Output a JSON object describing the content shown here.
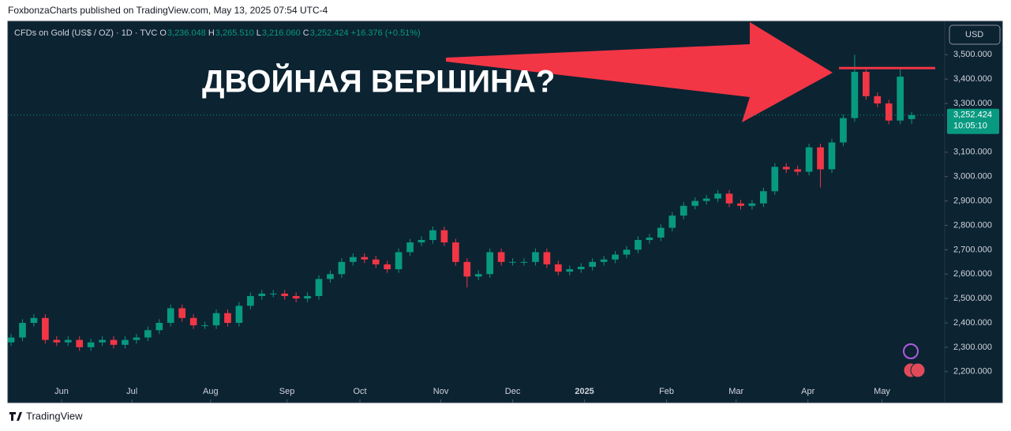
{
  "header": "FoxbonzaCharts published on TradingView.com, May 13, 2025 07:54 UTC-4",
  "footer": "TradingView",
  "currency_button": "USD",
  "chart_data": {
    "type": "candlestick",
    "symbol": "CFDs on Gold (US$ / OZ) · 1D · TVC",
    "ohlc_legend": [
      {
        "key": "O",
        "value": 3236.048,
        "label": "3,236.048"
      },
      {
        "key": "H",
        "value": 3265.51,
        "label": "3,265.510"
      },
      {
        "key": "L",
        "value": 3216.06,
        "label": "3,216.060"
      },
      {
        "key": "C",
        "value": 3252.424,
        "label": "3,252.424"
      }
    ],
    "change": {
      "value": 16.376,
      "label": "+16.376"
    },
    "change_pct": {
      "value": 0.51,
      "label": "(+0.51%)"
    },
    "annotation": "ДВОЙНАЯ ВЕРШИНА?",
    "resistance": 3445,
    "resistance_color": "#f23645",
    "last_price": {
      "value": 3252.424,
      "label": "3,252.424"
    },
    "countdown": "10:05:10",
    "up_color": "#089981",
    "down_color": "#f23645",
    "xlim": [
      -0.28,
      81.9
    ],
    "ylim": [
      2073,
      3637
    ],
    "xticks": [
      {
        "value": 4.43,
        "label": "Jun"
      },
      {
        "value": 10.6,
        "label": "Jul"
      },
      {
        "value": 17.5,
        "label": "Aug"
      },
      {
        "value": 24.2,
        "label": "Sep"
      },
      {
        "value": 30.6,
        "label": "Oct"
      },
      {
        "value": 37.7,
        "label": "Nov"
      },
      {
        "value": 44.0,
        "label": "Dec"
      },
      {
        "value": 50.3,
        "label": "2025"
      },
      {
        "value": 57.5,
        "label": "Feb"
      },
      {
        "value": 63.6,
        "label": "Mar"
      },
      {
        "value": 69.9,
        "label": "Apr"
      },
      {
        "value": 76.4,
        "label": "May"
      }
    ],
    "yticks": [
      {
        "value": 2200,
        "label": "2,200.000"
      },
      {
        "value": 2300,
        "label": "2,300.000"
      },
      {
        "value": 2400,
        "label": "2,400.000"
      },
      {
        "value": 2500,
        "label": "2,500.000"
      },
      {
        "value": 2600,
        "label": "2,600.000"
      },
      {
        "value": 2700,
        "label": "2,700.000"
      },
      {
        "value": 2800,
        "label": "2,800.000"
      },
      {
        "value": 2900,
        "label": "2,900.000"
      },
      {
        "value": 3000,
        "label": "3,000.000"
      },
      {
        "value": 3100,
        "label": "3,100.000"
      },
      {
        "value": 3300,
        "label": "3,300.000"
      },
      {
        "value": 3400,
        "label": "3,400.000"
      },
      {
        "value": 3500,
        "label": "3,500.000"
      }
    ],
    "open": [
      2320,
      2340,
      2400,
      2420,
      2330,
      2320,
      2330,
      2300,
      2320,
      2330,
      2310,
      2330,
      2340,
      2370,
      2400,
      2460,
      2420,
      2390,
      2390,
      2440,
      2400,
      2470,
      2510,
      2520,
      2520,
      2510,
      2500,
      2510,
      2580,
      2600,
      2650,
      2670,
      2660,
      2640,
      2620,
      2690,
      2730,
      2740,
      2780,
      2730,
      2650,
      2590,
      2600,
      2690,
      2650,
      2650,
      2650,
      2690,
      2640,
      2610,
      2620,
      2630,
      2650,
      2660,
      2680,
      2700,
      2740,
      2750,
      2790,
      2840,
      2880,
      2900,
      2910,
      2930,
      2890,
      2880,
      2890,
      2940,
      3040,
      3030,
      3020,
      3120,
      3030,
      3140,
      3240,
      3430,
      3330,
      3300,
      3230,
      3236.048
    ],
    "high": [
      2355,
      2415,
      2435,
      2435,
      2345,
      2345,
      2345,
      2335,
      2345,
      2345,
      2345,
      2355,
      2385,
      2415,
      2475,
      2475,
      2435,
      2405,
      2455,
      2455,
      2485,
      2525,
      2535,
      2535,
      2535,
      2525,
      2525,
      2595,
      2615,
      2665,
      2685,
      2685,
      2675,
      2655,
      2705,
      2745,
      2755,
      2795,
      2795,
      2745,
      2665,
      2615,
      2705,
      2705,
      2665,
      2665,
      2705,
      2705,
      2655,
      2635,
      2645,
      2665,
      2675,
      2695,
      2715,
      2755,
      2765,
      2805,
      2855,
      2895,
      2915,
      2925,
      2945,
      2945,
      2905,
      2905,
      2955,
      3055,
      3055,
      3045,
      3135,
      3135,
      3155,
      3255,
      3500,
      3445,
      3345,
      3315,
      3440,
      3265.51
    ],
    "low": [
      2305,
      2325,
      2385,
      2315,
      2305,
      2305,
      2285,
      2285,
      2305,
      2295,
      2295,
      2315,
      2325,
      2355,
      2385,
      2405,
      2375,
      2375,
      2375,
      2385,
      2385,
      2455,
      2495,
      2505,
      2495,
      2485,
      2485,
      2495,
      2565,
      2585,
      2635,
      2645,
      2625,
      2605,
      2605,
      2675,
      2715,
      2725,
      2715,
      2635,
      2545,
      2575,
      2585,
      2635,
      2635,
      2635,
      2635,
      2625,
      2595,
      2595,
      2605,
      2615,
      2635,
      2645,
      2665,
      2685,
      2725,
      2735,
      2775,
      2825,
      2865,
      2885,
      2895,
      2875,
      2865,
      2865,
      2875,
      2925,
      3015,
      3005,
      3005,
      2955,
      3015,
      3125,
      3225,
      3315,
      3285,
      3215,
      3215,
      3216.06
    ],
    "close": [
      2340,
      2400,
      2420,
      2330,
      2320,
      2330,
      2300,
      2320,
      2330,
      2310,
      2330,
      2340,
      2370,
      2400,
      2460,
      2420,
      2390,
      2390,
      2440,
      2400,
      2470,
      2510,
      2520,
      2520,
      2510,
      2500,
      2510,
      2580,
      2600,
      2650,
      2670,
      2660,
      2640,
      2620,
      2690,
      2730,
      2740,
      2780,
      2730,
      2650,
      2590,
      2600,
      2690,
      2650,
      2650,
      2650,
      2690,
      2640,
      2610,
      2620,
      2630,
      2650,
      2660,
      2680,
      2700,
      2740,
      2750,
      2790,
      2840,
      2880,
      2900,
      2910,
      2930,
      2890,
      2880,
      2890,
      2940,
      3040,
      3030,
      3020,
      3120,
      3030,
      3140,
      3240,
      3430,
      3330,
      3300,
      3230,
      3410,
      3252.424
    ]
  }
}
